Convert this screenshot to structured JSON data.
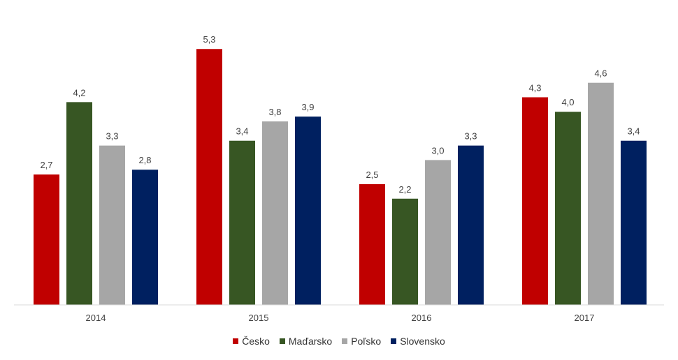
{
  "chart_data": {
    "type": "bar",
    "categories": [
      "2014",
      "2015",
      "2016",
      "2017"
    ],
    "series": [
      {
        "name": "Česko",
        "color": "#c00000",
        "values": [
          2.7,
          5.3,
          2.5,
          4.3
        ],
        "labels": [
          "2,7",
          "5,3",
          "2,5",
          "4,3"
        ]
      },
      {
        "name": "Maďarsko",
        "color": "#375623",
        "values": [
          4.2,
          3.4,
          2.2,
          4.0
        ],
        "labels": [
          "4,2",
          "3,4",
          "2,2",
          "4,0"
        ]
      },
      {
        "name": "Poľsko",
        "color": "#a6a6a6",
        "values": [
          3.3,
          3.8,
          3.0,
          4.6
        ],
        "labels": [
          "3,3",
          "3,8",
          "3,0",
          "4,6"
        ]
      },
      {
        "name": "Slovensko",
        "color": "#002060",
        "values": [
          2.8,
          3.9,
          3.3,
          3.4
        ],
        "labels": [
          "2,8",
          "3,9",
          "3,3",
          "3,4"
        ]
      }
    ],
    "ylim": [
      0,
      5.6
    ],
    "grid": false,
    "legend": "bottom-center",
    "axis_color": "#d9d9d9"
  }
}
